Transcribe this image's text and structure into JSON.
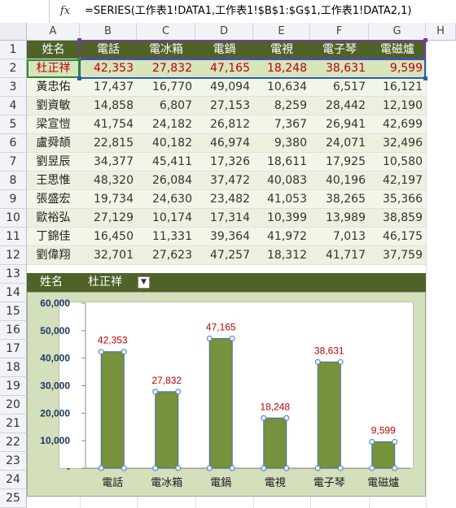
{
  "formula_bar": {
    "fx_label": "fx",
    "formula": "=SERIES(工作表1!DATA1,工作表1!$B$1:$G$1,工作表1!DATA2,1)"
  },
  "columns": [
    "A",
    "B",
    "C",
    "D",
    "E",
    "F",
    "G",
    "H"
  ],
  "row_numbers": [
    "1",
    "2",
    "3",
    "4",
    "5",
    "6",
    "7",
    "8",
    "9",
    "10",
    "11",
    "12",
    "13",
    "14",
    "15",
    "16",
    "17",
    "18",
    "19",
    "20",
    "21",
    "22",
    "23",
    "24",
    "25"
  ],
  "table": {
    "headers": [
      "姓名",
      "電話",
      "電冰箱",
      "電鍋",
      "電視",
      "電子琴",
      "電磁爐"
    ],
    "rows": [
      [
        "杜正祥",
        "42,353",
        "27,832",
        "47,165",
        "18,248",
        "38,631",
        "9,599"
      ],
      [
        "黃忠佑",
        "17,437",
        "16,770",
        "49,094",
        "10,634",
        "6,517",
        "16,121"
      ],
      [
        "劉資敏",
        "14,858",
        "6,807",
        "27,153",
        "8,259",
        "28,442",
        "12,190"
      ],
      [
        "梁宣愷",
        "41,754",
        "24,182",
        "26,812",
        "7,367",
        "26,941",
        "42,699"
      ],
      [
        "盧舜頡",
        "22,815",
        "40,182",
        "46,974",
        "9,380",
        "24,071",
        "32,496"
      ],
      [
        "劉昱辰",
        "34,377",
        "45,411",
        "17,326",
        "18,611",
        "17,925",
        "10,580"
      ],
      [
        "王思惟",
        "48,320",
        "26,084",
        "37,472",
        "40,083",
        "40,196",
        "42,197"
      ],
      [
        "張盛宏",
        "19,734",
        "24,630",
        "23,482",
        "41,053",
        "38,265",
        "35,366"
      ],
      [
        "歐裕弘",
        "27,129",
        "10,174",
        "17,314",
        "10,399",
        "13,989",
        "38,859"
      ],
      [
        "丁錦佳",
        "16,450",
        "11,331",
        "39,364",
        "41,972",
        "7,013",
        "46,175"
      ],
      [
        "劉偉翔",
        "32,701",
        "27,623",
        "47,257",
        "18,312",
        "41,717",
        "37,759"
      ]
    ]
  },
  "filter_row": {
    "label": "姓名",
    "value": "杜正祥",
    "dropdown_icon": "chevron-down-icon"
  },
  "colors": {
    "header_bg": "#4f6228",
    "band_light": "#ebf1de",
    "selected_row": "#d7e4bc",
    "bar_fill": "#76923c",
    "data_label": "#c00000",
    "axis_label": "#1f3864"
  },
  "chart_data": {
    "type": "bar",
    "categories": [
      "電話",
      "電冰箱",
      "電鍋",
      "電視",
      "電子琴",
      "電磁爐"
    ],
    "values": [
      42353,
      27832,
      47165,
      18248,
      38631,
      9599
    ],
    "data_labels": [
      "42,353",
      "27,832",
      "47,165",
      "18,248",
      "38,631",
      "9,599"
    ],
    "ylim": [
      0,
      60000
    ],
    "yticks": [
      0,
      10000,
      20000,
      30000,
      40000,
      50000,
      60000
    ],
    "ytick_labels": [
      "-",
      "10,000",
      "20,000",
      "30,000",
      "40,000",
      "50,000",
      "60,000"
    ],
    "title": "",
    "xlabel": "",
    "ylabel": "",
    "grid": false,
    "legend": "none"
  }
}
